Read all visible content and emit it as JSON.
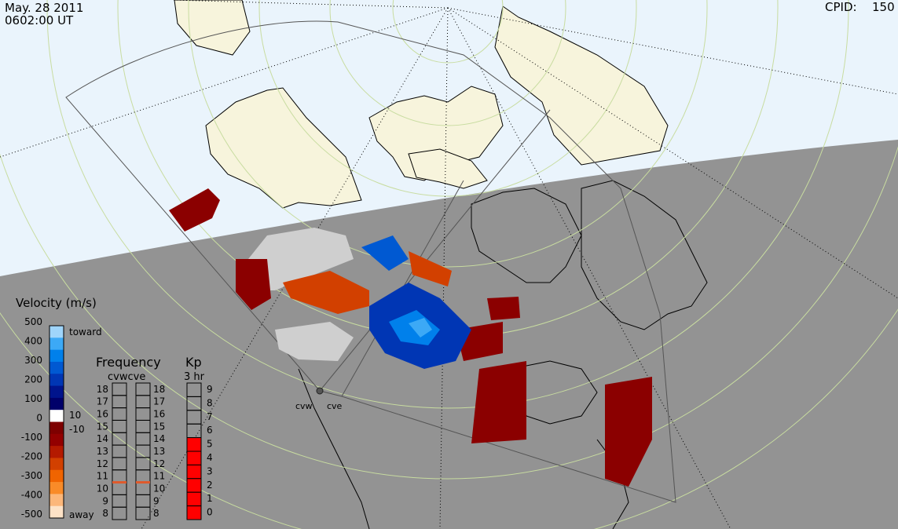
{
  "header": {
    "date": "May. 28 2011",
    "time": "0602:00 UT",
    "cpid_label": "CPID:",
    "cpid_value": "150"
  },
  "radars": [
    "cvw",
    "cve"
  ],
  "velocity_scale": {
    "title": "Velocity (m/s)",
    "ticks": [
      "500",
      "400",
      "300",
      "200",
      "100",
      "0",
      "-100",
      "-200",
      "-300",
      "-400",
      "-500"
    ],
    "toward_label": "toward",
    "away_label": "away",
    "zero_plus_label": "10",
    "zero_minus_label": "-10",
    "colors": [
      "#fde2c6",
      "#fcb77a",
      "#f98b28",
      "#f06400",
      "#d24000",
      "#b41a00",
      "#930000",
      "#7e0000",
      "#ffffff",
      "#00006a",
      "#00148c",
      "#0036b4",
      "#0059d2",
      "#0080eb",
      "#3ca9f6",
      "#9fd5fb"
    ]
  },
  "frequency": {
    "title": "Frequency",
    "subtitle": "cvwcve",
    "ticks": [
      "18",
      "17",
      "16",
      "15",
      "14",
      "13",
      "12",
      "11",
      "10",
      "9",
      "8"
    ],
    "cvw_value": 10.5,
    "cve_value": 10.5,
    "marker_color": "#e05a2b"
  },
  "kp": {
    "title": "Kp",
    "subtitle": "3 hr",
    "ticks": [
      "9",
      "8",
      "7",
      "6",
      "5",
      "4",
      "3",
      "2",
      "1",
      "0"
    ],
    "value": 6,
    "fill_color": "#ff0000"
  },
  "colors": {
    "night_side": "#939393",
    "day_side": "#eaf4fc",
    "land_day": "#f7f4dc",
    "grid_green": "#c8dca0"
  }
}
